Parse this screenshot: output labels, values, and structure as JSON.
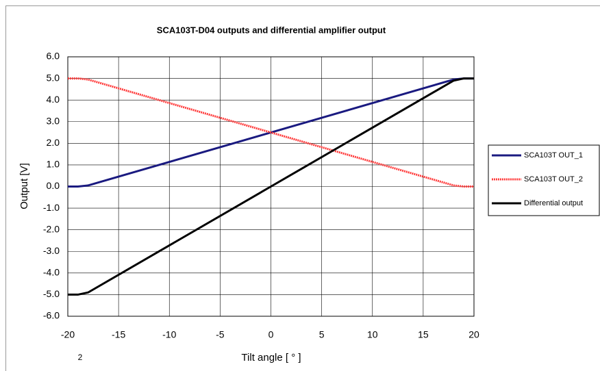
{
  "chart_data": {
    "type": "line",
    "title": "SCA103T-D04 outputs and differential amplifier output",
    "x_label": "Tilt angle [ ° ]",
    "y_label": "Output [V]",
    "note": "2",
    "x": [
      -20,
      -19,
      -18,
      0,
      18,
      19,
      20
    ],
    "series": [
      {
        "name": "SCA103T OUT_1",
        "color": "#1a1a80",
        "values": [
          0,
          0,
          0.05,
          2.5,
          4.95,
          5,
          5
        ]
      },
      {
        "name": "SCA103T OUT_2",
        "color": "#ff3b3b",
        "values": [
          5,
          5,
          4.95,
          2.5,
          0.05,
          0,
          0
        ]
      },
      {
        "name": "Differential output",
        "color": "#000000",
        "values": [
          -5,
          -5,
          -4.9,
          0,
          4.9,
          5,
          5
        ]
      }
    ],
    "xlim": [
      -20,
      20
    ],
    "xticks": [
      -20,
      -15,
      -10,
      -5,
      0,
      5,
      10,
      15,
      20
    ],
    "ylim": [
      -6,
      6
    ],
    "yticks": [
      {
        "value": -6,
        "label": "-6.0"
      },
      {
        "value": -5,
        "label": "-5.0"
      },
      {
        "value": -4,
        "label": "-4.0"
      },
      {
        "value": -3,
        "label": "-3.0"
      },
      {
        "value": -2,
        "label": "-2.0"
      },
      {
        "value": -1,
        "label": "-1.0"
      },
      {
        "value": 0,
        "label": "0.0"
      },
      {
        "value": 1,
        "label": "1.0"
      },
      {
        "value": 2,
        "label": "2.0"
      },
      {
        "value": 3,
        "label": "3.0"
      },
      {
        "value": 4,
        "label": "4.0"
      },
      {
        "value": 5,
        "label": "5.0"
      },
      {
        "value": 6,
        "label": "6.0"
      }
    ],
    "grid": true,
    "legend": "right"
  }
}
